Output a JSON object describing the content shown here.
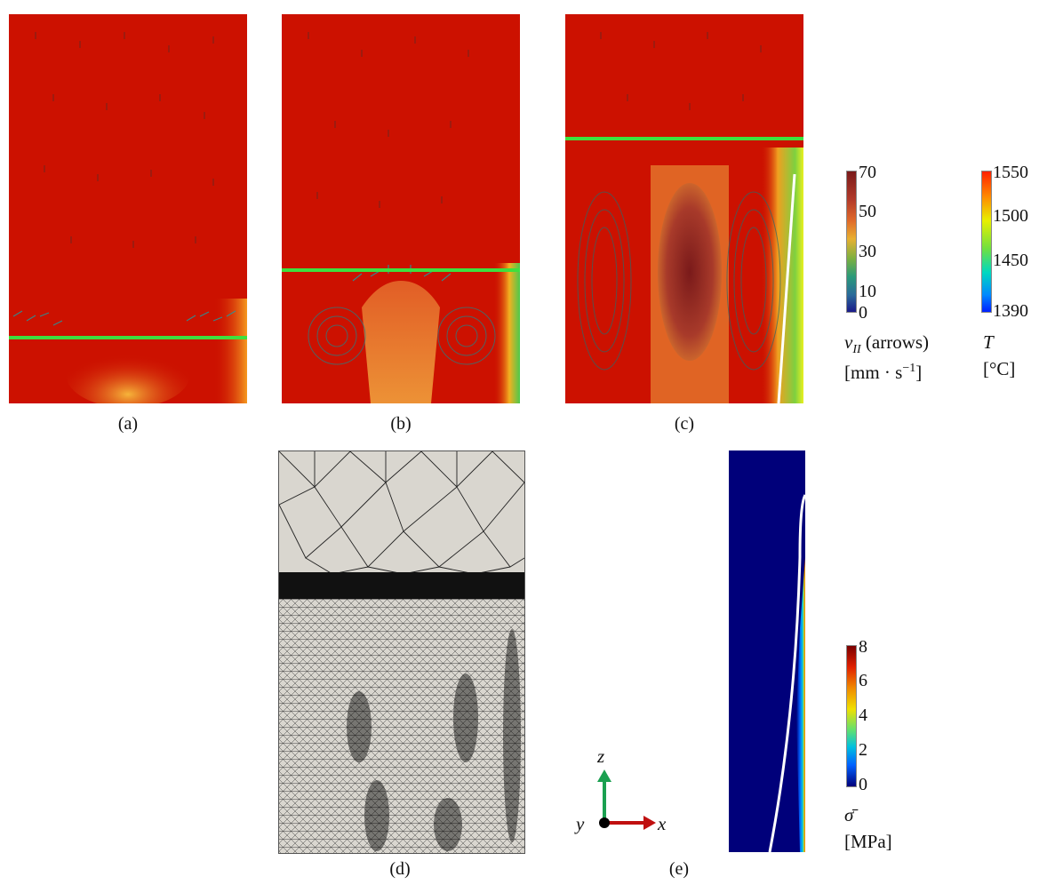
{
  "panels": {
    "a": {
      "label": "(a)"
    },
    "b": {
      "label": "(b)"
    },
    "c": {
      "label": "(c)"
    },
    "d": {
      "label": "(d)"
    },
    "e": {
      "label": "(e)"
    }
  },
  "velocity_colorbar": {
    "symbol": "v",
    "subscript": "II",
    "suffix": "(arrows)",
    "unit": "[mm · s",
    "unit_exp": "−1",
    "unit_close": "]",
    "ticks": [
      "70",
      "50",
      "30",
      "10",
      "0"
    ],
    "range": [
      0,
      70
    ]
  },
  "temperature_colorbar": {
    "symbol": "T",
    "unit": "[°C]",
    "ticks": [
      "1550",
      "1500",
      "1450",
      "1390"
    ],
    "range": [
      1390,
      1550
    ]
  },
  "stress_colorbar": {
    "symbol": "σ̄",
    "unit": "[MPa]",
    "ticks": [
      "8",
      "6",
      "4",
      "2",
      "0"
    ],
    "range": [
      0,
      8
    ]
  },
  "axes_triad": {
    "z": "z",
    "y": "y",
    "x": "x"
  },
  "colors": {
    "melt_red": "#cc1100",
    "interface_green": "#3ee03e",
    "mesh_bg": "#d9d6cf",
    "stress_blue": "#00007a"
  }
}
